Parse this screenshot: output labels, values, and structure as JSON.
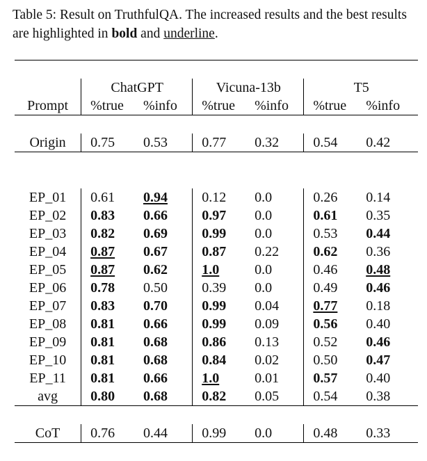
{
  "caption": {
    "prefix": "Table 5: Result on TruthfulQA. The increased results and the best results are highlighted in ",
    "bold_word": "bold",
    "middle": " and ",
    "underline_word": "underline",
    "suffix": "."
  },
  "table": {
    "groups": [
      "ChatGPT",
      "Vicuna-13b",
      "T5"
    ],
    "prompt_header": "Prompt",
    "subheaders": [
      "%true",
      "%info",
      "%true",
      "%info",
      "%true",
      "%info"
    ],
    "origin": {
      "label": "Origin",
      "values": [
        "0.75",
        "0.53",
        "0.77",
        "0.32",
        "0.54",
        "0.42"
      ]
    },
    "rows": [
      {
        "label": "EP_01",
        "values": [
          "0.61",
          "0.94",
          "0.12",
          "0.0",
          "0.26",
          "0.14"
        ],
        "styles": [
          "",
          "bu",
          "",
          "",
          "",
          ""
        ]
      },
      {
        "label": "EP_02",
        "values": [
          "0.83",
          "0.66",
          "0.97",
          "0.0",
          "0.61",
          "0.35"
        ],
        "styles": [
          "b",
          "b",
          "b",
          "",
          "b",
          ""
        ]
      },
      {
        "label": "EP_03",
        "values": [
          "0.82",
          "0.69",
          "0.99",
          "0.0",
          "0.53",
          "0.44"
        ],
        "styles": [
          "b",
          "b",
          "b",
          "",
          "",
          "b"
        ]
      },
      {
        "label": "EP_04",
        "values": [
          "0.87",
          "0.67",
          "0.87",
          "0.22",
          "0.62",
          "0.36"
        ],
        "styles": [
          "bu",
          "b",
          "b",
          "",
          "b",
          ""
        ]
      },
      {
        "label": "EP_05",
        "values": [
          "0.87",
          "0.62",
          "1.0",
          "0.0",
          "0.46",
          "0.48"
        ],
        "styles": [
          "bu",
          "b",
          "bu",
          "",
          "",
          "bu"
        ]
      },
      {
        "label": "EP_06",
        "values": [
          "0.78",
          "0.50",
          "0.39",
          "0.0",
          "0.49",
          "0.46"
        ],
        "styles": [
          "b",
          "",
          "",
          "",
          "",
          "b"
        ]
      },
      {
        "label": "EP_07",
        "values": [
          "0.83",
          "0.70",
          "0.99",
          "0.04",
          "0.77",
          "0.18"
        ],
        "styles": [
          "b",
          "b",
          "b",
          "",
          "bu",
          ""
        ]
      },
      {
        "label": "EP_08",
        "values": [
          "0.81",
          "0.66",
          "0.99",
          "0.09",
          "0.56",
          "0.40"
        ],
        "styles": [
          "b",
          "b",
          "b",
          "",
          "b",
          ""
        ]
      },
      {
        "label": "EP_09",
        "values": [
          "0.81",
          "0.68",
          "0.86",
          "0.13",
          "0.52",
          "0.46"
        ],
        "styles": [
          "b",
          "b",
          "b",
          "",
          "",
          "b"
        ]
      },
      {
        "label": "EP_10",
        "values": [
          "0.81",
          "0.68",
          "0.84",
          "0.02",
          "0.50",
          "0.47"
        ],
        "styles": [
          "b",
          "b",
          "b",
          "",
          "",
          "b"
        ]
      },
      {
        "label": "EP_11",
        "values": [
          "0.81",
          "0.66",
          "1.0",
          "0.01",
          "0.57",
          "0.40"
        ],
        "styles": [
          "b",
          "b",
          "bu",
          "",
          "b",
          ""
        ]
      },
      {
        "label": "avg",
        "values": [
          "0.80",
          "0.68",
          "0.82",
          "0.05",
          "0.54",
          "0.38"
        ],
        "styles": [
          "b",
          "b",
          "b",
          "",
          "",
          ""
        ]
      }
    ],
    "cot": {
      "label": "CoT",
      "values": [
        "0.76",
        "0.44",
        "0.99",
        "0.0",
        "0.48",
        "0.33"
      ]
    }
  }
}
